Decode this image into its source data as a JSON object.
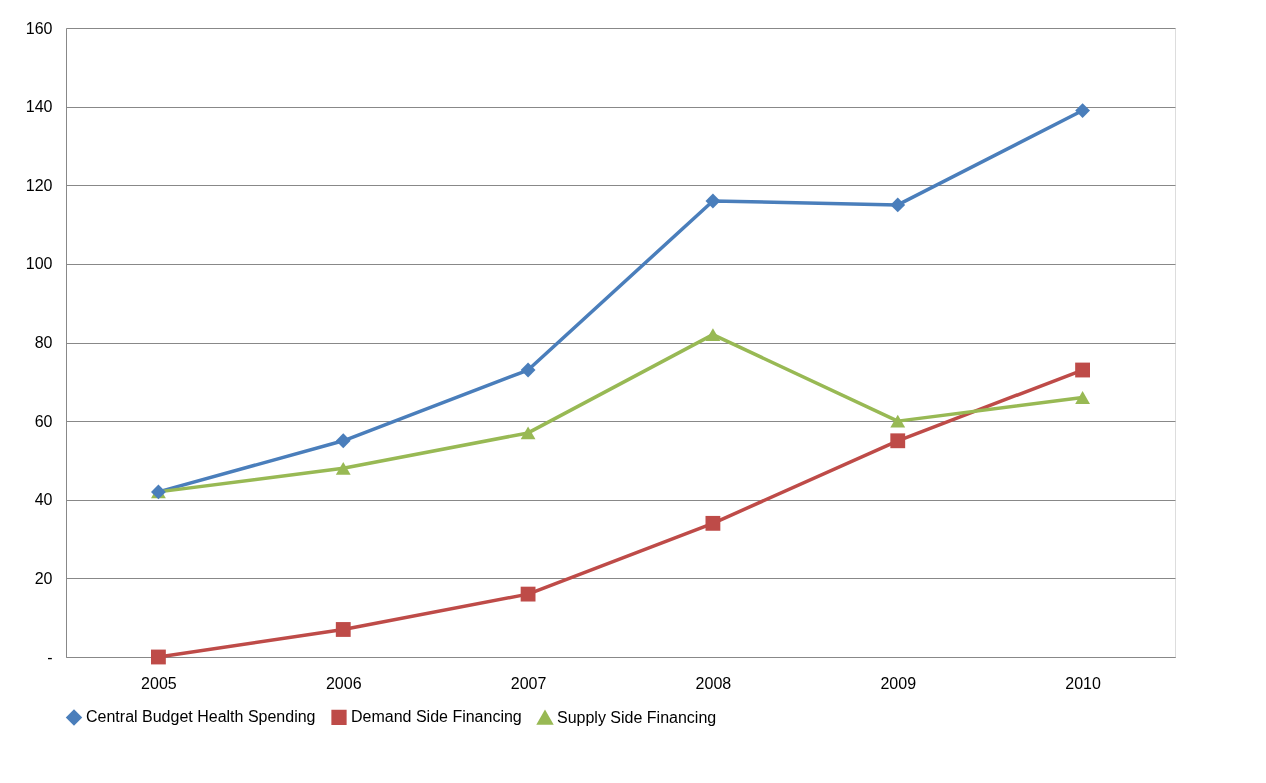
{
  "chart_data": {
    "type": "line",
    "categories": [
      "2005",
      "2006",
      "2007",
      "2008",
      "2009",
      "2010"
    ],
    "series": [
      {
        "name": "Central Budget Health Spending",
        "color": "#4a7ebb",
        "marker": "diamond",
        "values": [
          42,
          55,
          73,
          116,
          115,
          139
        ]
      },
      {
        "name": "Demand Side Financing",
        "color": "#be4b48",
        "marker": "square",
        "values": [
          0,
          7,
          16,
          34,
          55,
          73
        ]
      },
      {
        "name": "Supply Side Financing",
        "color": "#98b954",
        "marker": "triangle",
        "values": [
          42,
          48,
          57,
          82,
          60,
          66
        ]
      }
    ],
    "ylim": [
      0,
      160
    ],
    "yticks": [
      {
        "value": 0,
        "label": "-"
      },
      20,
      40,
      60,
      80,
      100,
      120,
      140,
      160
    ],
    "grid": "y",
    "legend": "bottom",
    "line_style": "solid"
  }
}
